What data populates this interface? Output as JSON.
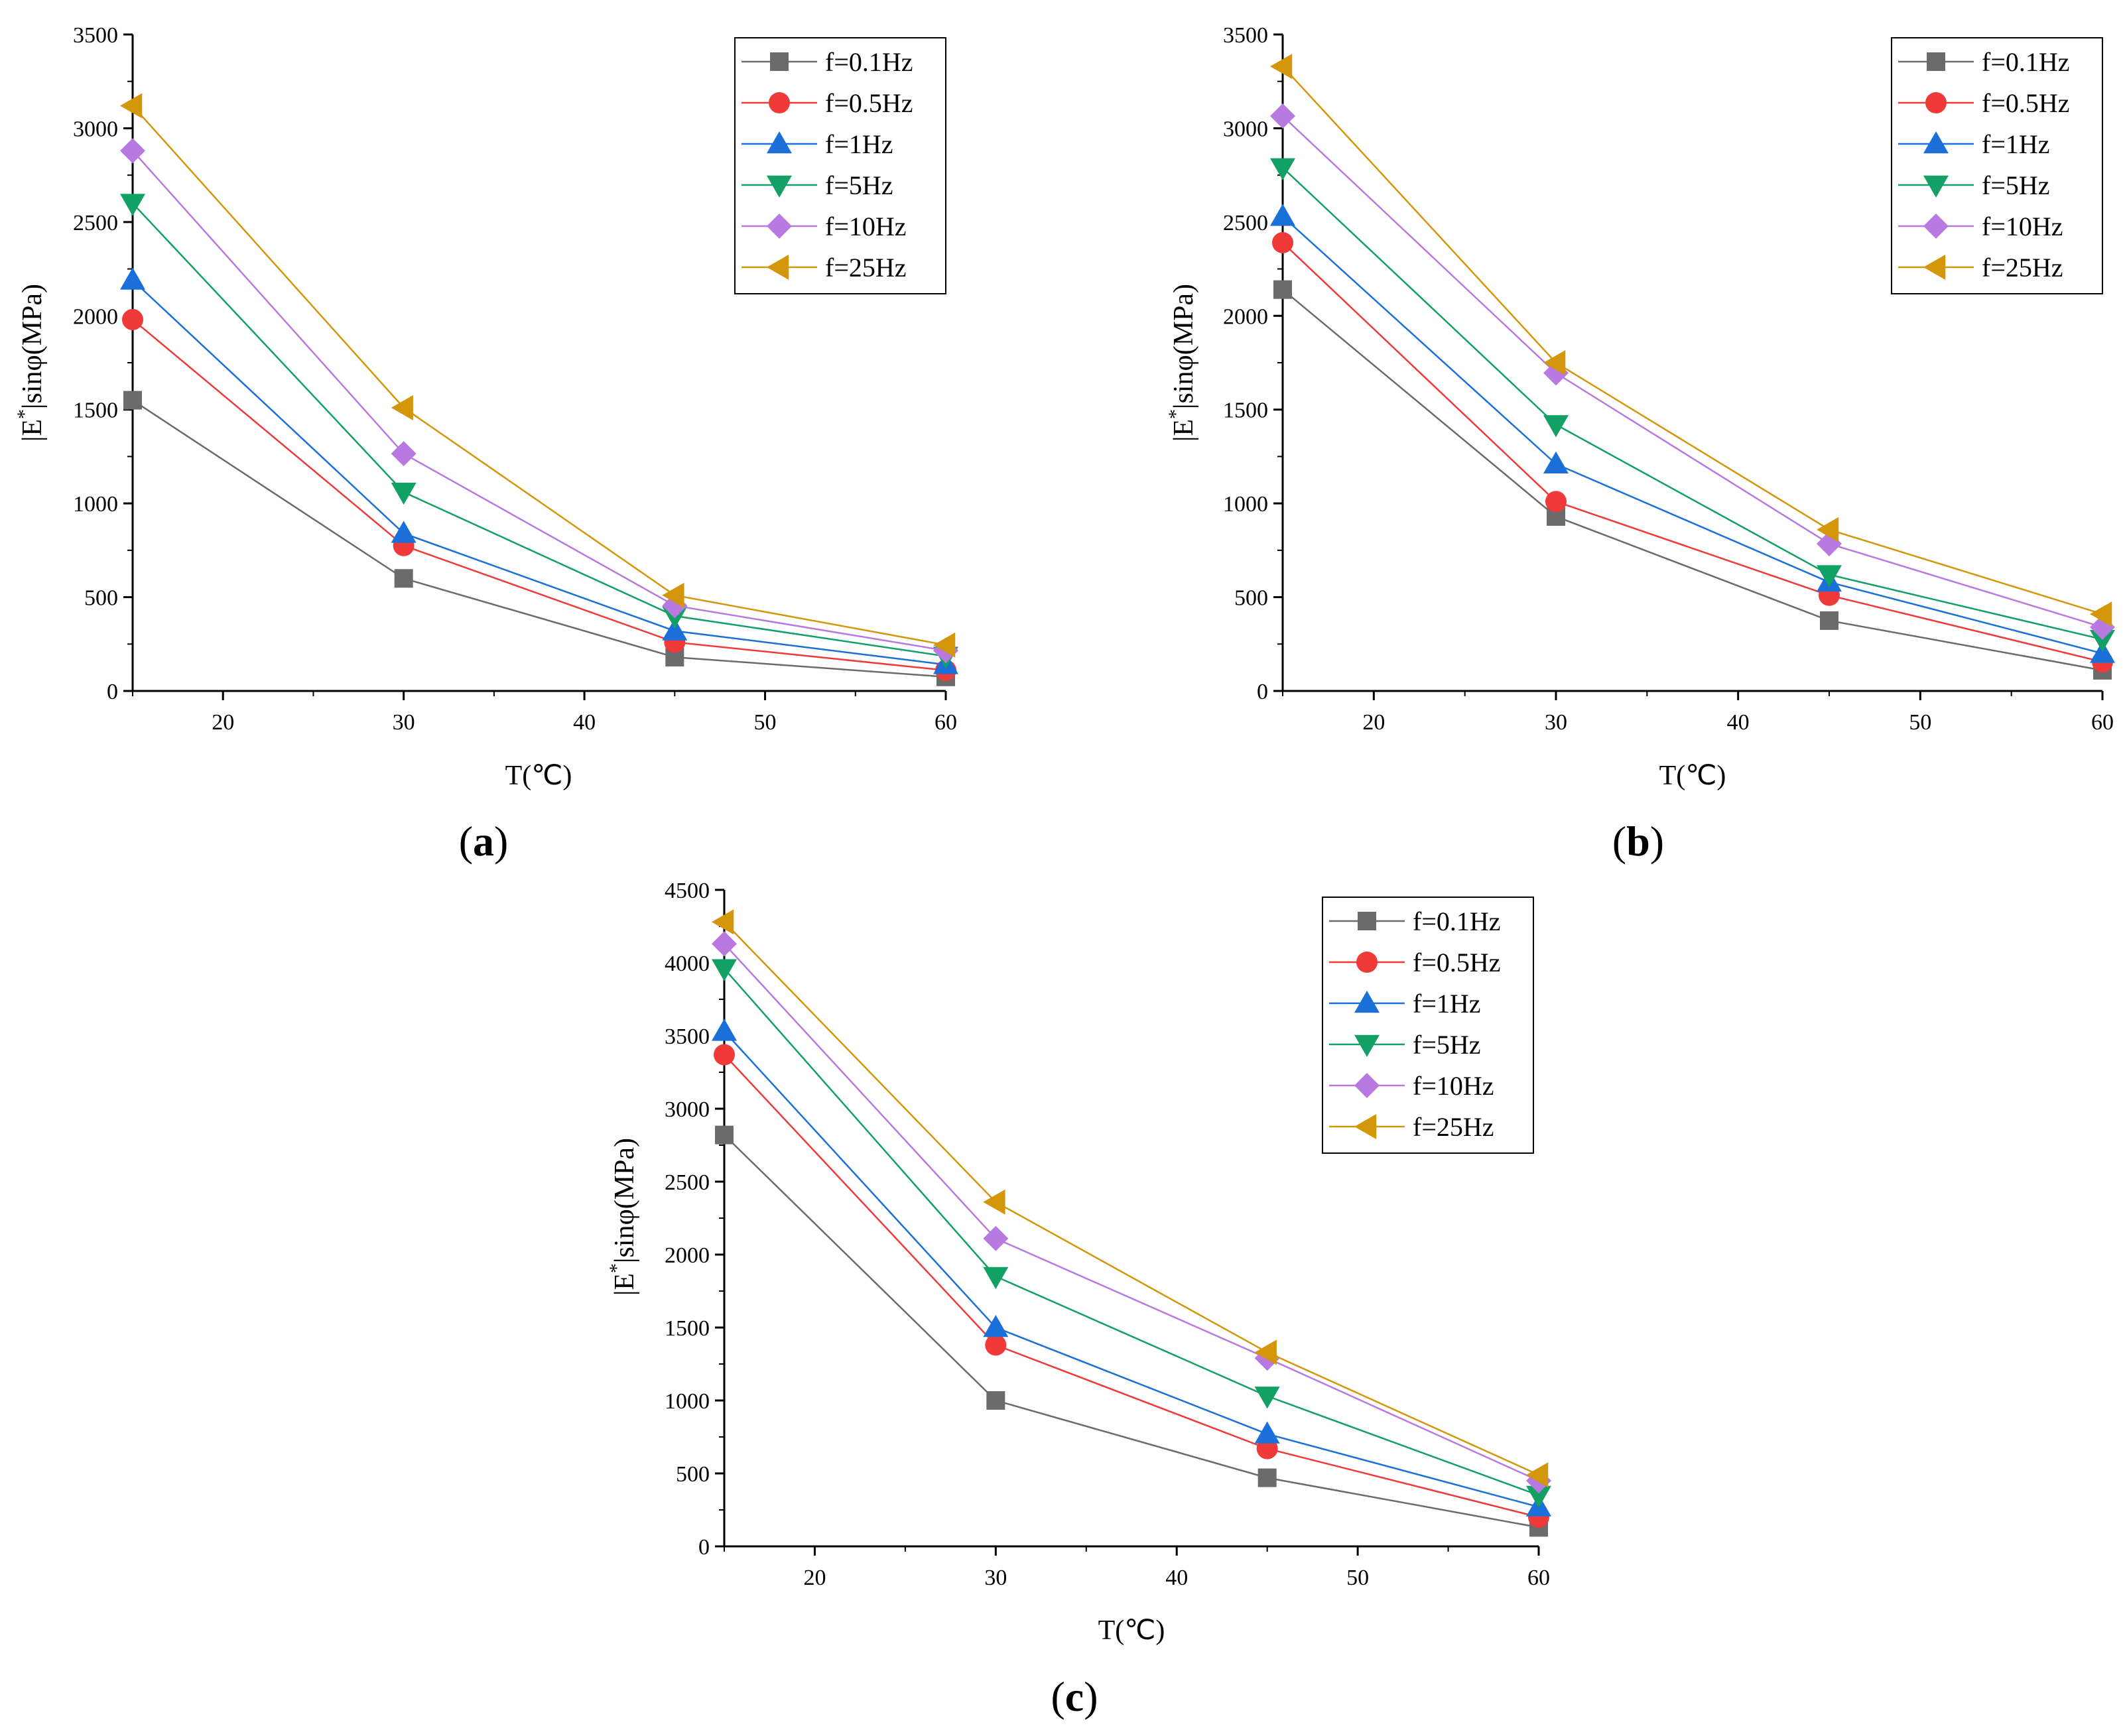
{
  "chart_data": [
    {
      "type": "line",
      "panel_label": "a",
      "xlabel": "T(℃)",
      "ylabel_base": "|E",
      "ylabel_sup": "*",
      "ylabel_rest": "|sinφ(MPa)",
      "xlim": [
        15,
        60
      ],
      "ylim": [
        0,
        3500
      ],
      "xticks": [
        20,
        30,
        40,
        50,
        60
      ],
      "yticks": [
        0,
        500,
        1000,
        1500,
        2000,
        2500,
        3000,
        3500
      ],
      "legend_position": "top-right",
      "x": [
        15,
        30,
        45,
        60
      ],
      "series": [
        {
          "name": "f=0.1Hz",
          "marker": "square",
          "color": "#6b6b6b",
          "values": [
            1550,
            600,
            180,
            75
          ]
        },
        {
          "name": "f=0.5Hz",
          "marker": "circle",
          "color": "#f03a3a",
          "values": [
            1980,
            775,
            260,
            110
          ]
        },
        {
          "name": "f=1Hz",
          "marker": "triangle-up",
          "color": "#1a70d8",
          "values": [
            2190,
            840,
            320,
            140
          ]
        },
        {
          "name": "f=5Hz",
          "marker": "triangle-down",
          "color": "#12a064",
          "values": [
            2600,
            1060,
            400,
            185
          ]
        },
        {
          "name": "f=10Hz",
          "marker": "diamond",
          "color": "#b87ae0",
          "values": [
            2880,
            1265,
            455,
            215
          ]
        },
        {
          "name": "f=25Hz",
          "marker": "triangle-left",
          "color": "#d4960a",
          "values": [
            3120,
            1510,
            510,
            245
          ]
        }
      ]
    },
    {
      "type": "line",
      "panel_label": "b",
      "xlabel": "T(℃)",
      "ylabel_base": "|E",
      "ylabel_sup": "*",
      "ylabel_rest": "|sinφ(MPa)",
      "xlim": [
        15,
        60
      ],
      "ylim": [
        0,
        3500
      ],
      "xticks": [
        20,
        30,
        40,
        50,
        60
      ],
      "yticks": [
        0,
        500,
        1000,
        1500,
        2000,
        2500,
        3000,
        3500
      ],
      "legend_position": "top-right",
      "x": [
        15,
        30,
        45,
        60
      ],
      "series": [
        {
          "name": "f=0.1Hz",
          "marker": "square",
          "color": "#6b6b6b",
          "values": [
            2140,
            930,
            375,
            110
          ]
        },
        {
          "name": "f=0.5Hz",
          "marker": "circle",
          "color": "#f03a3a",
          "values": [
            2390,
            1010,
            510,
            155
          ]
        },
        {
          "name": "f=1Hz",
          "marker": "triangle-up",
          "color": "#1a70d8",
          "values": [
            2530,
            1210,
            580,
            200
          ]
        },
        {
          "name": "f=5Hz",
          "marker": "triangle-down",
          "color": "#12a064",
          "values": [
            2790,
            1420,
            620,
            275
          ]
        },
        {
          "name": "f=10Hz",
          "marker": "diamond",
          "color": "#b87ae0",
          "values": [
            3065,
            1695,
            785,
            340
          ]
        },
        {
          "name": "f=25Hz",
          "marker": "triangle-left",
          "color": "#d4960a",
          "values": [
            3330,
            1750,
            860,
            410
          ]
        }
      ]
    },
    {
      "type": "line",
      "panel_label": "c",
      "xlabel": "T(℃)",
      "ylabel_base": "|E",
      "ylabel_sup": "*",
      "ylabel_rest": "|sinφ(MPa)",
      "xlim": [
        15,
        60
      ],
      "ylim": [
        0,
        4500
      ],
      "xticks": [
        20,
        30,
        40,
        50,
        60
      ],
      "yticks": [
        0,
        500,
        1000,
        1500,
        2000,
        2500,
        3000,
        3500,
        4000,
        4500
      ],
      "legend_position": "top-right",
      "x": [
        15,
        30,
        45,
        60
      ],
      "series": [
        {
          "name": "f=0.1Hz",
          "marker": "square",
          "color": "#6b6b6b",
          "values": [
            2820,
            1000,
            470,
            130
          ]
        },
        {
          "name": "f=0.5Hz",
          "marker": "circle",
          "color": "#f03a3a",
          "values": [
            3370,
            1380,
            670,
            200
          ]
        },
        {
          "name": "f=1Hz",
          "marker": "triangle-up",
          "color": "#1a70d8",
          "values": [
            3530,
            1500,
            770,
            270
          ]
        },
        {
          "name": "f=5Hz",
          "marker": "triangle-down",
          "color": "#12a064",
          "values": [
            3960,
            1850,
            1030,
            350
          ]
        },
        {
          "name": "f=10Hz",
          "marker": "diamond",
          "color": "#b87ae0",
          "values": [
            4130,
            2110,
            1290,
            450
          ]
        },
        {
          "name": "f=25Hz",
          "marker": "triangle-left",
          "color": "#d4960a",
          "values": [
            4280,
            2360,
            1330,
            490
          ]
        }
      ]
    }
  ]
}
